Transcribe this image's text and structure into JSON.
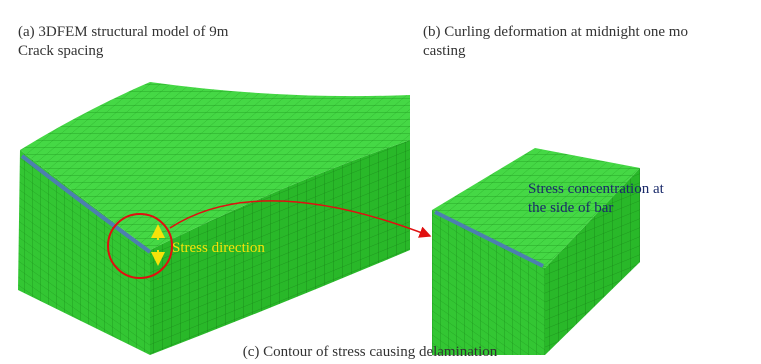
{
  "figure": {
    "caption_a": [
      "(a) 3DFEM structural model of 9m",
      "Crack spacing"
    ],
    "caption_b": [
      "(b) Curling deformation at midnight one mo",
      "casting"
    ],
    "caption_c": "(c) Contour of stress causing delamination",
    "annotation_stress_direction": "Stress direction",
    "annotation_concentration": [
      "Stress  concentration  at",
      "the side of bar"
    ]
  }
}
